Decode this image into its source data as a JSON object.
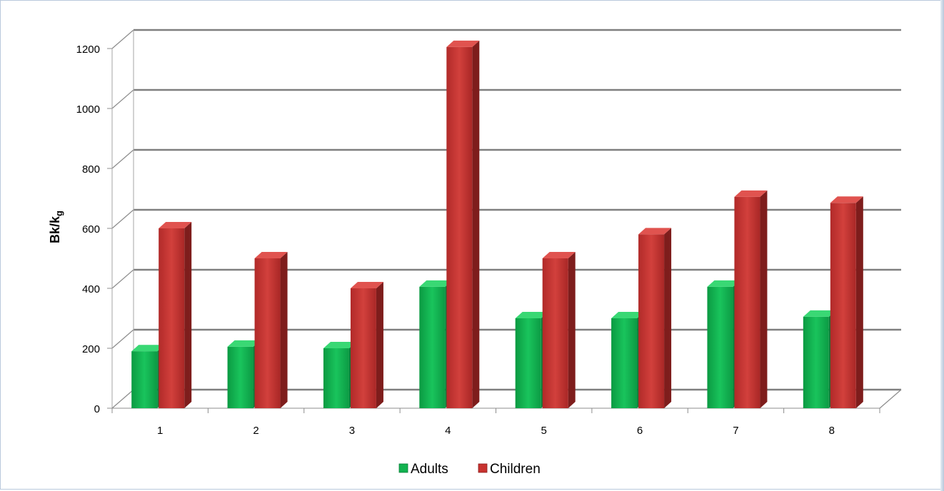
{
  "chart_data": {
    "type": "bar",
    "categories": [
      "1",
      "2",
      "3",
      "4",
      "5",
      "6",
      "7",
      "8"
    ],
    "series": [
      {
        "name": "Adults",
        "values": [
          190,
          205,
          200,
          405,
          300,
          300,
          405,
          305
        ],
        "color": "#0fa64a"
      },
      {
        "name": "Children",
        "values": [
          600,
          500,
          400,
          1205,
          500,
          580,
          705,
          685
        ],
        "color": "#c0302e"
      }
    ],
    "ylabel": "Bk/kg",
    "ylabel_main": "Bk/k",
    "ylabel_sub": "g",
    "yticks": [
      "0",
      "200",
      "400",
      "600",
      "800",
      "1000",
      "1200"
    ],
    "ylim": [
      0,
      1200
    ],
    "legend_position": "bottom",
    "grid": true,
    "style": "3d-bar"
  }
}
